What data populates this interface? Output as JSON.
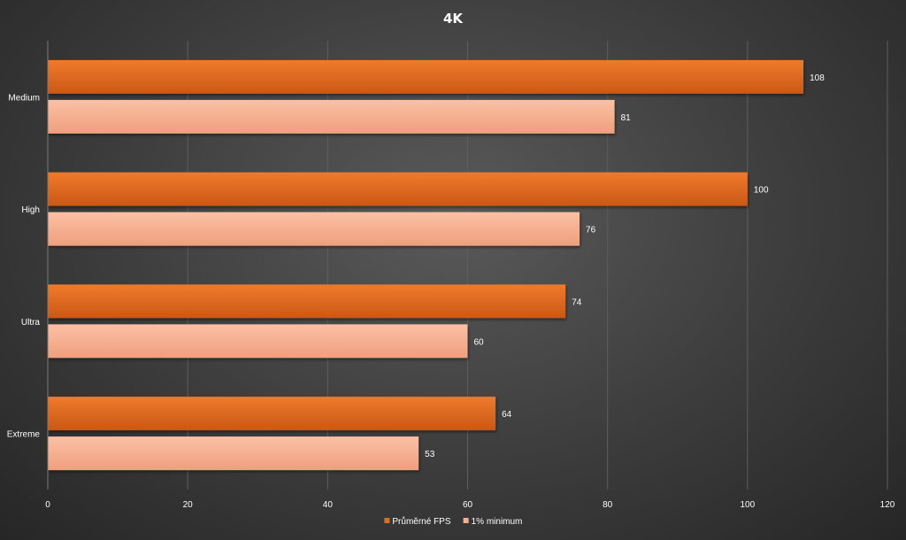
{
  "chart_data": {
    "type": "bar",
    "orientation": "horizontal",
    "title": "4K",
    "categories": [
      "Medium",
      "High",
      "Ultra",
      "Extreme"
    ],
    "series": [
      {
        "name": "Průměrné FPS",
        "values": [
          108,
          100,
          74,
          64
        ],
        "color": "#e06b22"
      },
      {
        "name": "1% minimum",
        "values": [
          81,
          76,
          60,
          53
        ],
        "color": "#f8b091"
      }
    ],
    "xlim": [
      0,
      120
    ],
    "xticks": [
      0,
      20,
      40,
      60,
      80,
      100,
      120
    ],
    "grid": true,
    "legend": "bottom-center",
    "colors": {
      "background": "#3c3c3c",
      "text": "#ffffff",
      "gridline": "#5e5e5e"
    }
  }
}
